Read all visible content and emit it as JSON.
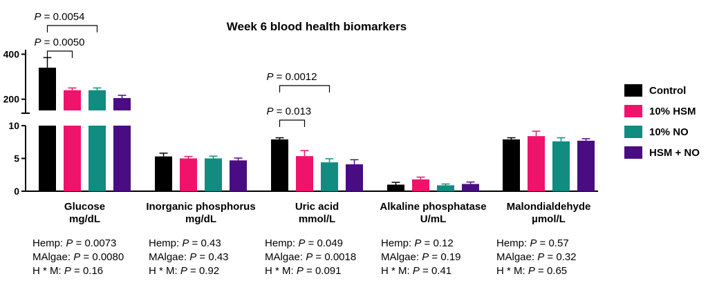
{
  "chart_data": {
    "type": "bar",
    "title": "Week 6 blood health biomarkers",
    "series": [
      {
        "name": "Control",
        "color": "#000000",
        "values": [
          340,
          5.3,
          7.9,
          1.0,
          7.9
        ],
        "errors": [
          45,
          0.5,
          0.25,
          0.35,
          0.25
        ]
      },
      {
        "name": "10% HSM",
        "color": "#f0136b",
        "values": [
          240,
          5.0,
          5.35,
          1.8,
          8.4
        ],
        "errors": [
          10,
          0.3,
          0.85,
          0.35,
          0.75
        ]
      },
      {
        "name": "10% NO",
        "color": "#128b81",
        "values": [
          240,
          5.0,
          4.4,
          0.9,
          7.6
        ],
        "errors": [
          10,
          0.35,
          0.55,
          0.2,
          0.55
        ]
      },
      {
        "name": "HSM + NO",
        "color": "#4a0c82",
        "values": [
          205,
          4.7,
          4.1,
          1.1,
          7.7
        ],
        "errors": [
          12,
          0.35,
          0.7,
          0.3,
          0.3
        ]
      }
    ],
    "categories": [
      {
        "name": "Glucose",
        "unit": "mg/dL",
        "stats": {
          "hemp": "0.0073",
          "malgae": "0.0080",
          "hm": "0.16"
        }
      },
      {
        "name": "Inorganic phosphorus",
        "unit": "mg/dL",
        "stats": {
          "hemp": "0.43",
          "malgae": "0.43",
          "hm": "0.92"
        }
      },
      {
        "name": "Uric acid",
        "unit": "mmol/L",
        "stats": {
          "hemp": "0.049",
          "malgae": "0.0018",
          "hm": "0.091"
        }
      },
      {
        "name": "Alkaline phosphatase",
        "unit": "U/mL",
        "stats": {
          "hemp": "0.12",
          "malgae": "0.19",
          "hm": "0.41"
        }
      },
      {
        "name": "Malondialdehyde",
        "unit": "µmol/L",
        "stats": {
          "hemp": "0.57",
          "malgae": "0.32",
          "hm": "0.65"
        }
      }
    ],
    "axis": {
      "lower_ylim": [
        0,
        10
      ],
      "lower_ticks": [
        "0",
        "5",
        "10"
      ],
      "upper_ylim": [
        150,
        420
      ],
      "upper_ticks": [
        "200",
        "400"
      ],
      "broken": true
    },
    "stat_labels": {
      "hemp": "Hemp: ",
      "malgae": "MAlgae: ",
      "hm": "H * M: ",
      "p": "P",
      "eq": " = "
    },
    "comparisons": [
      {
        "category": 0,
        "from": 0,
        "to": 2,
        "p": "P",
        "value": " = 0.0054"
      },
      {
        "category": 0,
        "from": 0,
        "to": 1,
        "p": "P",
        "value": " = 0.0050"
      },
      {
        "category": 2,
        "from": 0,
        "to": 2,
        "p": "P",
        "value": " = 0.0012"
      },
      {
        "category": 2,
        "from": 0,
        "to": 1,
        "p": "P",
        "value": " = 0.013"
      }
    ],
    "legend_position": "right"
  }
}
